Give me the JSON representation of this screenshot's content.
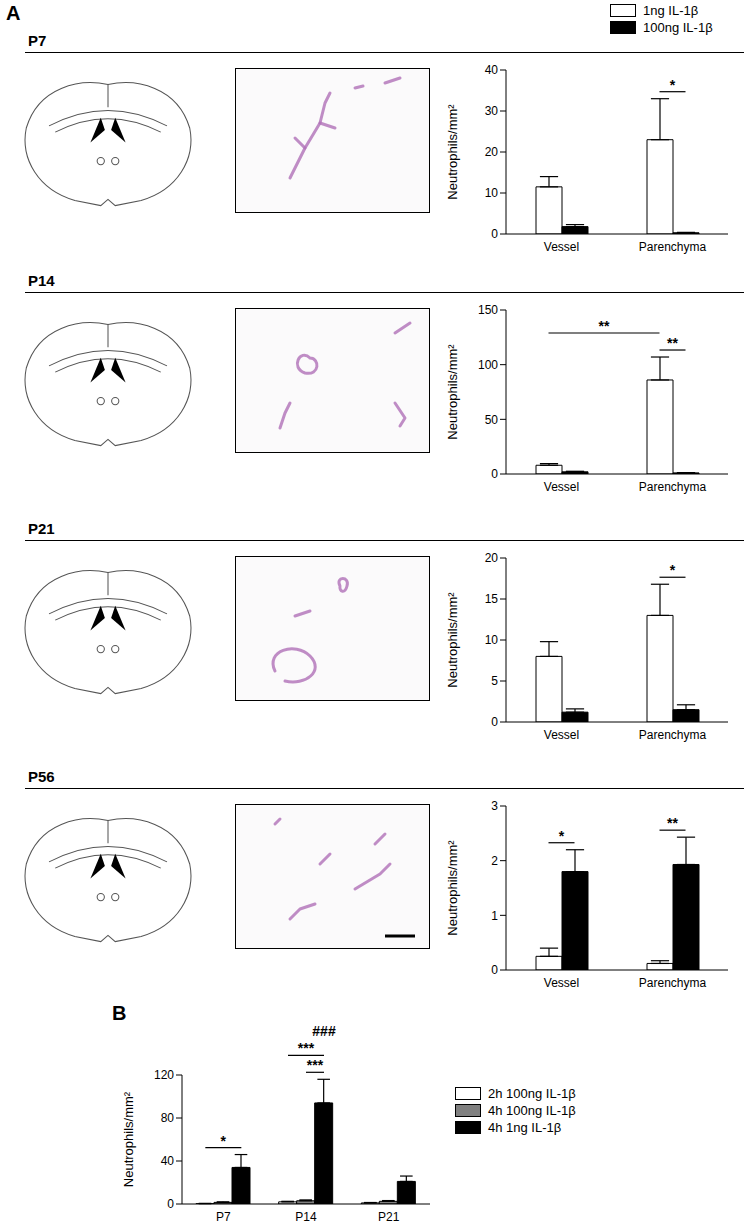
{
  "panels": [
    "A",
    "B"
  ],
  "chart_data": [
    {
      "type": "bar",
      "panel": "A",
      "title": "P7",
      "legend": "top-right",
      "y_label": "Neutrophils/mm²",
      "categories": [
        "Vessel",
        "Parenchyma"
      ],
      "series": [
        {
          "name": "1ng IL-1β",
          "color": "#ffffff",
          "values": [
            11.5,
            23
          ],
          "errors": [
            2.5,
            10
          ]
        },
        {
          "name": "100ng IL-1β",
          "color": "#000000",
          "values": [
            1.8,
            0.3
          ],
          "errors": [
            0.5,
            0.1
          ]
        }
      ],
      "ylim": [
        0,
        40
      ],
      "yticks": [
        0,
        10,
        20,
        30,
        40
      ],
      "annotations": [
        {
          "text": "*",
          "from": [
            "Parenchyma",
            "1ng IL-1β"
          ],
          "to": [
            "Parenchyma",
            "100ng IL-1β"
          ]
        }
      ]
    },
    {
      "type": "bar",
      "panel": "A",
      "title": "P14",
      "y_label": "Neutrophils/mm²",
      "categories": [
        "Vessel",
        "Parenchyma"
      ],
      "series": [
        {
          "name": "1ng IL-1β",
          "color": "#ffffff",
          "values": [
            8,
            86
          ],
          "errors": [
            1.5,
            21
          ]
        },
        {
          "name": "100ng IL-1β",
          "color": "#000000",
          "values": [
            2,
            1
          ],
          "errors": [
            0.5,
            0.3
          ]
        }
      ],
      "ylim": [
        0,
        150
      ],
      "yticks": [
        0,
        50,
        100,
        150
      ],
      "annotations": [
        {
          "text": "**",
          "from": [
            "Parenchyma",
            "1ng IL-1β"
          ],
          "to": [
            "Parenchyma",
            "100ng IL-1β"
          ]
        },
        {
          "text": "**",
          "from": [
            "Vessel",
            "1ng IL-1β"
          ],
          "to": [
            "Parenchyma",
            "1ng IL-1β"
          ]
        }
      ]
    },
    {
      "type": "bar",
      "panel": "A",
      "title": "P21",
      "y_label": "Neutrophils/mm²",
      "categories": [
        "Vessel",
        "Parenchyma"
      ],
      "series": [
        {
          "name": "1ng IL-1β",
          "color": "#ffffff",
          "values": [
            8,
            13
          ],
          "errors": [
            1.8,
            3.8
          ]
        },
        {
          "name": "100ng IL-1β",
          "color": "#000000",
          "values": [
            1.2,
            1.5
          ],
          "errors": [
            0.4,
            0.6
          ]
        }
      ],
      "ylim": [
        0,
        20
      ],
      "yticks": [
        0,
        5,
        10,
        15,
        20
      ],
      "annotations": [
        {
          "text": "*",
          "from": [
            "Parenchyma",
            "1ng IL-1β"
          ],
          "to": [
            "Parenchyma",
            "100ng IL-1β"
          ]
        }
      ]
    },
    {
      "type": "bar",
      "panel": "A",
      "title": "P56",
      "y_label": "Neutrophils/mm²",
      "categories": [
        "Vessel",
        "Parenchyma"
      ],
      "series": [
        {
          "name": "1ng IL-1β",
          "color": "#ffffff",
          "values": [
            0.25,
            0.12
          ],
          "errors": [
            0.15,
            0.05
          ]
        },
        {
          "name": "100ng IL-1β",
          "color": "#000000",
          "values": [
            1.8,
            1.93
          ],
          "errors": [
            0.4,
            0.5
          ]
        }
      ],
      "ylim": [
        0,
        3
      ],
      "yticks": [
        0,
        1,
        2,
        3
      ],
      "annotations": [
        {
          "text": "*",
          "from": [
            "Vessel",
            "1ng IL-1β"
          ],
          "to": [
            "Vessel",
            "100ng IL-1β"
          ]
        },
        {
          "text": "**",
          "from": [
            "Parenchyma",
            "1ng IL-1β"
          ],
          "to": [
            "Parenchyma",
            "100ng IL-1β"
          ]
        }
      ]
    },
    {
      "type": "bar",
      "panel": "B",
      "legend": "right",
      "y_label": "Neutrophils/mm²",
      "categories": [
        "P7",
        "P14",
        "P21"
      ],
      "series": [
        {
          "name": "2h 100ng IL-1β",
          "color": "#ffffff",
          "values": [
            0.3,
            2,
            1
          ],
          "errors": [
            0.3,
            0.5,
            0.4
          ]
        },
        {
          "name": "4h 100ng IL-1β",
          "color": "#808080",
          "values": [
            1.5,
            3,
            2.5
          ],
          "errors": [
            0.5,
            0.8,
            0.7
          ]
        },
        {
          "name": "4h 1ng IL-1β",
          "color": "#000000",
          "values": [
            34,
            94,
            21
          ],
          "errors": [
            12,
            22,
            5
          ]
        }
      ],
      "ylim": [
        0,
        120
      ],
      "yticks": [
        0,
        40,
        80,
        120
      ],
      "annotations": [
        {
          "text": "*",
          "from": [
            "P7",
            "2h 100ng IL-1β"
          ],
          "to": [
            "P7",
            "4h 1ng IL-1β"
          ]
        },
        {
          "text": "***",
          "from": [
            "P14",
            "4h 100ng IL-1β"
          ],
          "to": [
            "P14",
            "4h 1ng IL-1β"
          ]
        },
        {
          "text": "***",
          "from": [
            "P14",
            "2h 100ng IL-1β"
          ],
          "to": [
            "P14",
            "4h 1ng IL-1β"
          ]
        },
        {
          "text": "###",
          "from": [
            "P14",
            "4h 1ng IL-1β"
          ],
          "to": [
            "P14",
            "4h 1ng IL-1β"
          ]
        }
      ]
    }
  ]
}
